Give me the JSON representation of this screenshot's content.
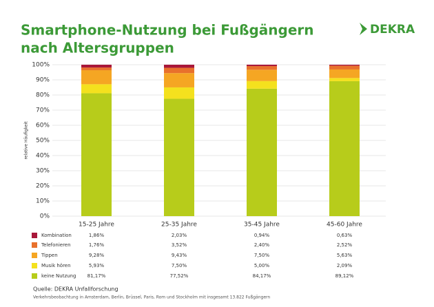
{
  "brand": "DEKRA",
  "chart_data": {
    "type": "stacked_bar",
    "title": [
      "Smartphone-Nutzung bei Fußgängern",
      "nach Altersgruppen"
    ],
    "y_label": "relative Häufigkeit",
    "categories": [
      "15-25 Jahre",
      "25-35 Jahre",
      "35-45 Jahre",
      "45-60 Jahre"
    ],
    "series": [
      {
        "name": "Kombination",
        "color": "#a8173a",
        "values": [
          1.86,
          2.03,
          0.94,
          0.63
        ],
        "value_labels": [
          "1,86%",
          "2,03%",
          "0,94%",
          "0,63%"
        ]
      },
      {
        "name": "Telefonieren",
        "color": "#e8712c",
        "values": [
          1.76,
          3.52,
          2.4,
          2.52
        ],
        "value_labels": [
          "1,76%",
          "3,52%",
          "2,40%",
          "2,52%"
        ]
      },
      {
        "name": "Tippen",
        "color": "#f5a623",
        "values": [
          9.28,
          9.43,
          7.5,
          5.63
        ],
        "value_labels": [
          "9,28%",
          "9,43%",
          "7,50%",
          "5,63%"
        ]
      },
      {
        "name": "Musik hören",
        "color": "#f4e11e",
        "values": [
          5.93,
          7.5,
          5.0,
          2.09
        ],
        "value_labels": [
          "5,93%",
          "7,50%",
          "5,00%",
          "2,09%"
        ]
      },
      {
        "name": "keine Nutzung",
        "color": "#b7cc1b",
        "values": [
          81.17,
          77.52,
          84.17,
          89.12
        ],
        "value_labels": [
          "81,17%",
          "77,52%",
          "84,17%",
          "89,12%"
        ]
      }
    ],
    "ylim": [
      0,
      100
    ],
    "yticks": [
      {
        "value": 0,
        "label": "0%"
      },
      {
        "value": 10,
        "label": "10%"
      },
      {
        "value": 20,
        "label": "20%"
      },
      {
        "value": 30,
        "label": "30%"
      },
      {
        "value": 40,
        "label": "40%"
      },
      {
        "value": 50,
        "label": "50%"
      },
      {
        "value": 60,
        "label": "60%"
      },
      {
        "value": 70,
        "label": "70%"
      },
      {
        "value": 80,
        "label": "80%"
      },
      {
        "value": 90,
        "label": "90%"
      },
      {
        "value": 100,
        "label": "100%"
      }
    ],
    "grid": true,
    "source": "Quelle: DEKRA Unfallforschung",
    "note": "Verkehrsbeobachtung in Amsterdam, Berlin, Brüssel, Paris, Rom und Stockholm mit insgesamt 13.822 Fußgängern"
  }
}
